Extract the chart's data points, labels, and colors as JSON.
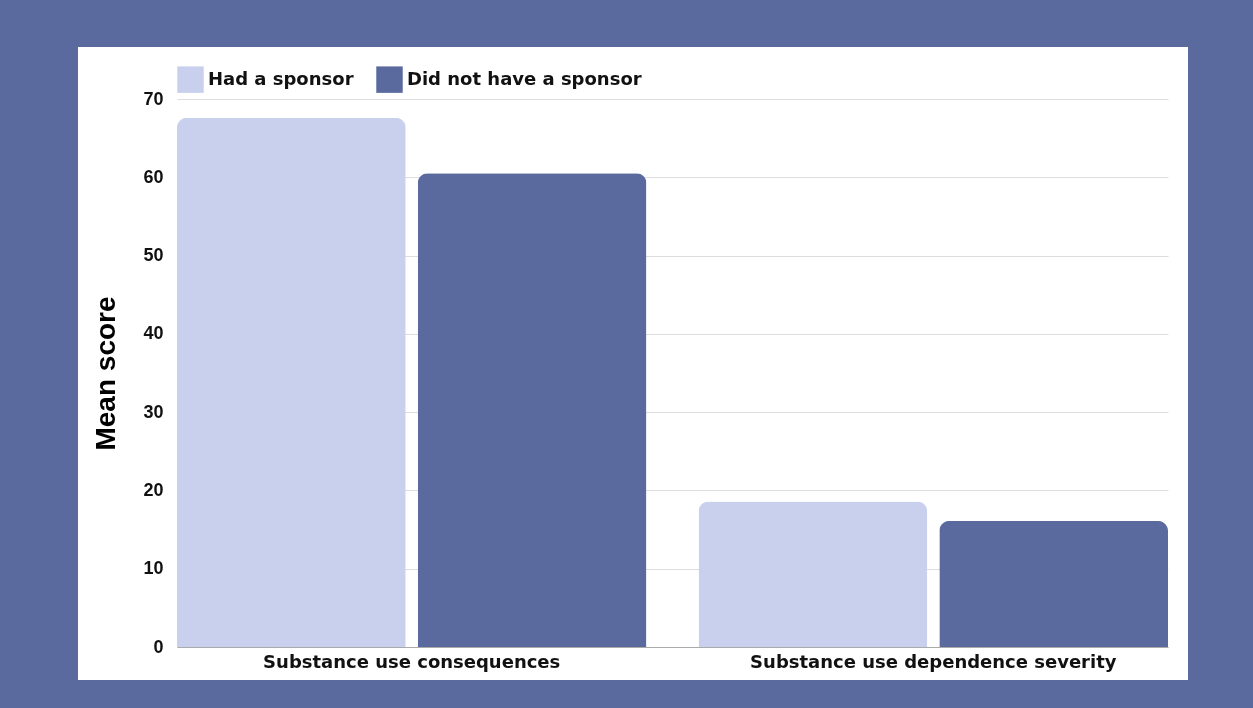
{
  "chart_data": {
    "type": "bar",
    "ylabel": "Mean score",
    "categories": [
      "Substance use consequences",
      "Substance use dependence severity"
    ],
    "series": [
      {
        "name": "Had a sponsor",
        "color": "#c8d0ee",
        "values": [
          67.6,
          18.6
        ]
      },
      {
        "name": "Did not have a sponsor",
        "color": "#5a6a9f",
        "values": [
          60.5,
          16.1
        ]
      }
    ],
    "ylim": [
      0,
      70
    ],
    "yticks": [
      0,
      10,
      20,
      30,
      40,
      50,
      60,
      70
    ],
    "grid": "y",
    "legend": "top"
  }
}
